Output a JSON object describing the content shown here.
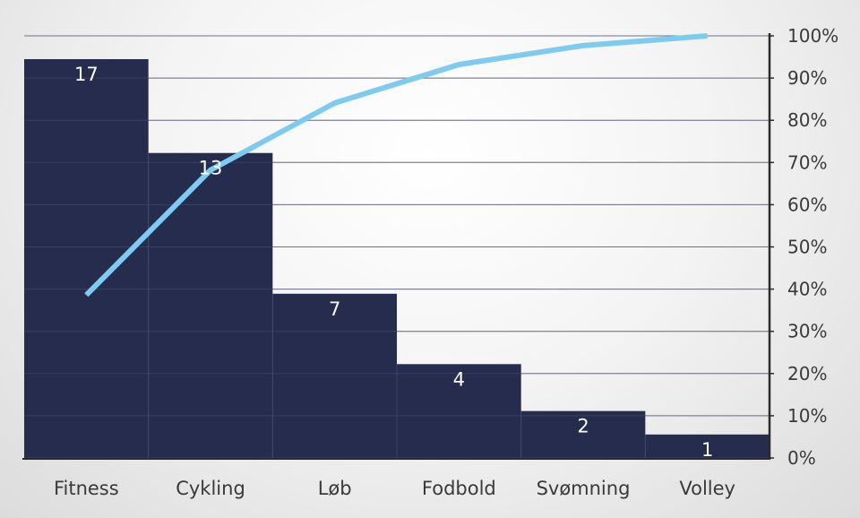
{
  "chart_data": {
    "type": "bar",
    "categories": [
      "Fitness",
      "Cykling",
      "Løb",
      "Fodbold",
      "Svømning",
      "Volley"
    ],
    "values": [
      17,
      13,
      7,
      4,
      2,
      1
    ],
    "value_labels": [
      "17",
      "13",
      "7",
      "4",
      "2",
      "1"
    ],
    "cumulative_percent": [
      38.6,
      68.2,
      84.1,
      93.2,
      97.7,
      100
    ],
    "y_left_lim": [
      0,
      17
    ],
    "y_right_ticks": [
      "0%",
      "10%",
      "20%",
      "30%",
      "40%",
      "50%",
      "60%",
      "70%",
      "80%",
      "90%",
      "100%"
    ],
    "y_right_lim": [
      0,
      100
    ],
    "grid": true,
    "colors": {
      "bars": "#262c4e",
      "line": "#7ecbf0",
      "axis": "#2b2b2b",
      "grid": "#9a9a9a"
    }
  }
}
